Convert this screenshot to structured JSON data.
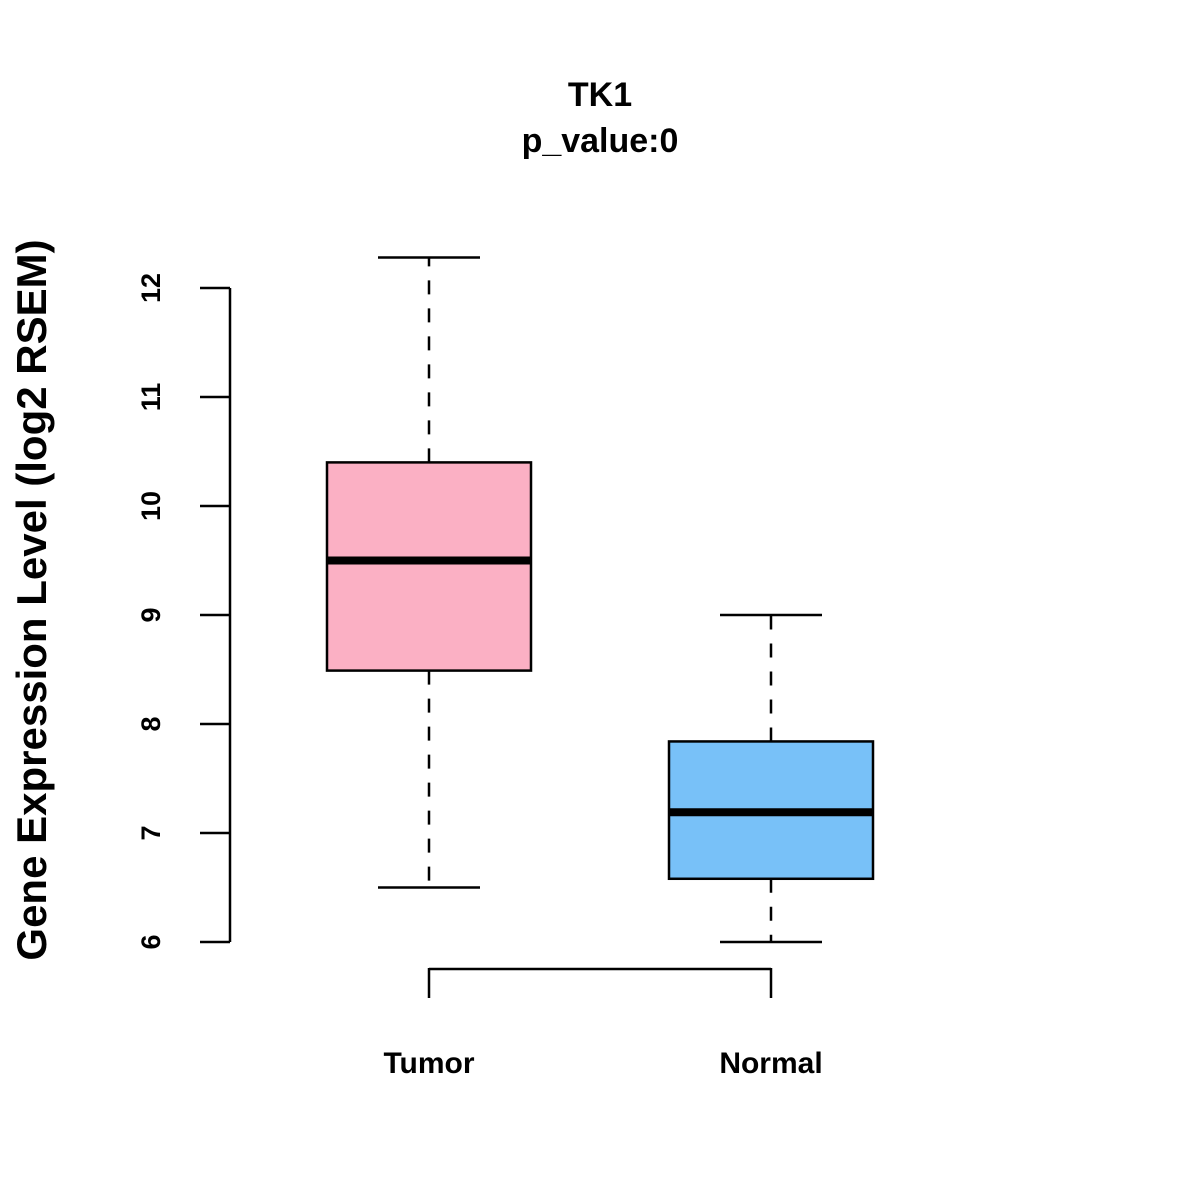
{
  "chart_data": {
    "type": "boxplot",
    "title": "TK1",
    "subtitle": "p_value:0",
    "xlabel": "",
    "ylabel": "Gene Expression Level (log2 RSEM)",
    "ylim": [
      6,
      12
    ],
    "yticks": [
      "6",
      "7",
      "8",
      "9",
      "10",
      "11",
      "12"
    ],
    "categories": [
      "Tumor",
      "Normal"
    ],
    "boxes": [
      {
        "name": "Tumor",
        "whisker_low": 6.5,
        "q1": 8.49,
        "median": 9.5,
        "q3": 10.4,
        "whisker_high": 12.28,
        "color": "#fbb0c4"
      },
      {
        "name": "Normal",
        "whisker_low": 6.0,
        "q1": 6.58,
        "median": 7.19,
        "q3": 7.84,
        "whisker_high": 9.0,
        "color": "#78c1f8"
      }
    ]
  }
}
